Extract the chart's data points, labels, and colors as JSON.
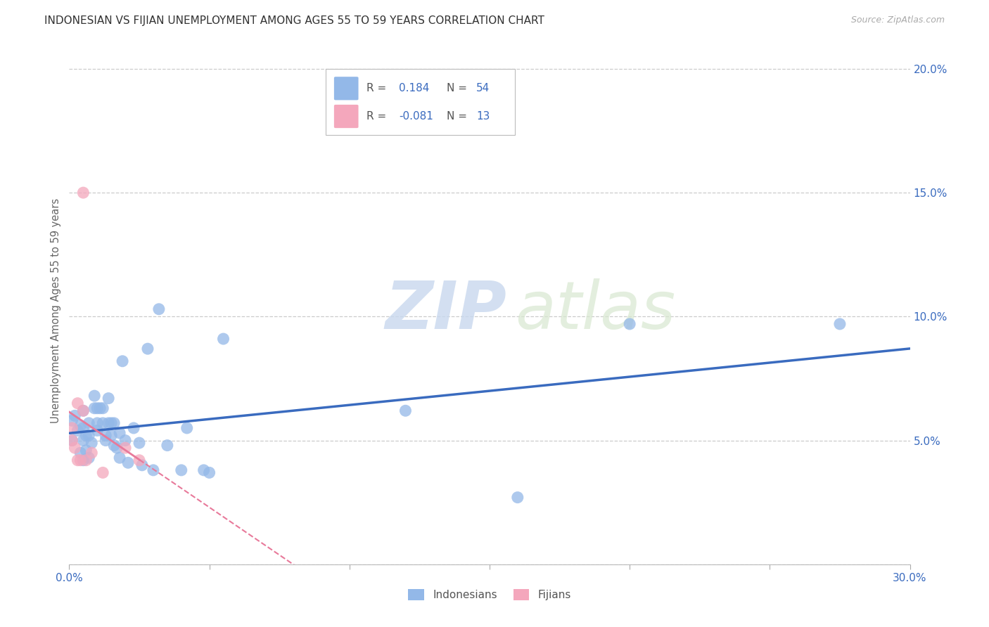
{
  "title": "INDONESIAN VS FIJIAN UNEMPLOYMENT AMONG AGES 55 TO 59 YEARS CORRELATION CHART",
  "source": "Source: ZipAtlas.com",
  "ylabel": "Unemployment Among Ages 55 to 59 years",
  "xlim": [
    0.0,
    0.3
  ],
  "ylim": [
    0.0,
    0.205
  ],
  "xticks": [
    0.0,
    0.05,
    0.1,
    0.15,
    0.2,
    0.25,
    0.3
  ],
  "yticks": [
    0.0,
    0.05,
    0.1,
    0.15,
    0.2
  ],
  "ytick_labels": [
    "",
    "5.0%",
    "10.0%",
    "15.0%",
    "20.0%"
  ],
  "xtick_labels": [
    "0.0%",
    "",
    "",
    "",
    "",
    "",
    "30.0%"
  ],
  "indonesian_color": "#93b8e8",
  "fijian_color": "#f4a7bc",
  "indonesian_line_color": "#3a6bbf",
  "fijian_line_color": "#e8799a",
  "background_color": "#ffffff",
  "grid_color": "#cccccc",
  "watermark_zip": "ZIP",
  "watermark_atlas": "atlas",
  "indonesian_x": [
    0.001,
    0.001,
    0.002,
    0.003,
    0.004,
    0.004,
    0.005,
    0.005,
    0.005,
    0.005,
    0.006,
    0.006,
    0.007,
    0.007,
    0.007,
    0.008,
    0.009,
    0.009,
    0.01,
    0.01,
    0.01,
    0.011,
    0.012,
    0.012,
    0.013,
    0.013,
    0.014,
    0.014,
    0.015,
    0.015,
    0.016,
    0.016,
    0.017,
    0.018,
    0.018,
    0.019,
    0.02,
    0.021,
    0.023,
    0.025,
    0.026,
    0.028,
    0.03,
    0.032,
    0.035,
    0.04,
    0.042,
    0.048,
    0.05,
    0.055,
    0.12,
    0.16,
    0.2,
    0.275
  ],
  "indonesian_y": [
    0.05,
    0.058,
    0.06,
    0.054,
    0.056,
    0.045,
    0.042,
    0.05,
    0.055,
    0.062,
    0.046,
    0.052,
    0.043,
    0.052,
    0.057,
    0.049,
    0.063,
    0.068,
    0.054,
    0.057,
    0.063,
    0.063,
    0.057,
    0.063,
    0.05,
    0.052,
    0.057,
    0.067,
    0.052,
    0.057,
    0.048,
    0.057,
    0.047,
    0.043,
    0.053,
    0.082,
    0.05,
    0.041,
    0.055,
    0.049,
    0.04,
    0.087,
    0.038,
    0.103,
    0.048,
    0.038,
    0.055,
    0.038,
    0.037,
    0.091,
    0.062,
    0.027,
    0.097,
    0.097
  ],
  "fijian_x": [
    0.001,
    0.001,
    0.002,
    0.003,
    0.003,
    0.004,
    0.005,
    0.005,
    0.006,
    0.008,
    0.012,
    0.02,
    0.025
  ],
  "fijian_y": [
    0.05,
    0.055,
    0.047,
    0.042,
    0.065,
    0.042,
    0.15,
    0.062,
    0.042,
    0.045,
    0.037,
    0.047,
    0.042
  ]
}
